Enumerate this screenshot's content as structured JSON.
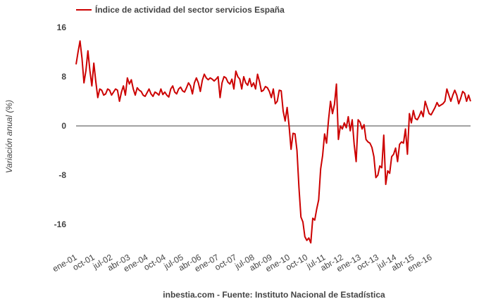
{
  "chart_data": {
    "type": "line",
    "title": "",
    "xlabel": "",
    "ylabel": "Variación anual (%)",
    "source": "inbestia.com - Fuente: Instituto Nacional de Estadística",
    "legend": "top-left",
    "grid": false,
    "ylim": [
      -20,
      16
    ],
    "yticks": [
      16,
      8,
      0,
      -8,
      -16
    ],
    "xticks": [
      "ene-01",
      "oct-01",
      "jul-02",
      "abr-03",
      "ene-04",
      "oct-04",
      "jul-05",
      "abr-06",
      "ene-07",
      "oct-07",
      "jul-08",
      "abr-09",
      "ene-10",
      "oct-10",
      "jul-11",
      "abr-12",
      "ene-13",
      "oct-13",
      "jul-14",
      "abr-15",
      "ene-16"
    ],
    "colors": {
      "series": "#cc0000",
      "zero_line": "#444444"
    },
    "series": [
      {
        "name": "Índice de actividad del sector servicios España",
        "x_start": "ene-01",
        "frequency": "monthly",
        "values": [
          10,
          12,
          13.8,
          11,
          7,
          9,
          12.2,
          9,
          6.5,
          10.2,
          7.2,
          4.6,
          6,
          5.8,
          5,
          5.2,
          6,
          5.8,
          5,
          5.5,
          6,
          5.8,
          4,
          5.5,
          6.5,
          5,
          7.8,
          6.8,
          7.5,
          6,
          5,
          6.2,
          5.8,
          5.6,
          5,
          4.8,
          5.4,
          6,
          5.2,
          4.8,
          5.5,
          5.3,
          5,
          6,
          5.1,
          5.5,
          5,
          4.7,
          6,
          6.5,
          5.5,
          5.2,
          6,
          6.3,
          5.7,
          5.5,
          6.2,
          7,
          6.5,
          5.2,
          7,
          7.8,
          7,
          5.6,
          7.4,
          8.4,
          7.8,
          7.5,
          7.8,
          7.6,
          7.3,
          7.6,
          8,
          4.6,
          7,
          8,
          7.8,
          7.1,
          6.8,
          7.6,
          6,
          8.9,
          8,
          7.6,
          6,
          8,
          7,
          6.6,
          7.7,
          6.4,
          7,
          6,
          8.4,
          7.2,
          5.6,
          5.8,
          6.4,
          6.2,
          5.6,
          4.6,
          6,
          3.6,
          4,
          5.8,
          5.7,
          2.4,
          0.8,
          3,
          0,
          -3.8,
          -1.2,
          -1.3,
          -4,
          -10,
          -14.8,
          -15.6,
          -18,
          -18.6,
          -18.2,
          -19,
          -15,
          -15.3,
          -13.5,
          -12,
          -7,
          -4.8,
          -1.3,
          -2.8,
          1,
          4,
          2,
          3.5,
          6.8,
          -2.2,
          0,
          -0.5,
          0.5,
          -0.3,
          1.5,
          -0.8,
          1,
          -3,
          -5.8,
          1,
          0.6,
          -0.5,
          0.2,
          -2.2,
          -2.6,
          -2.8,
          -3.5,
          -5,
          -8.4,
          -8,
          -6.5,
          -6.8,
          -1.5,
          -9.5,
          -7.3,
          -7.7,
          -5,
          -4.6,
          -3.6,
          -5.8,
          -3,
          -2.6,
          -2.8,
          -0.5,
          -4.6,
          2,
          0.5,
          2.5,
          1.2,
          1,
          1.6,
          2.4,
          1.5,
          4,
          3,
          2,
          1.8,
          2.4,
          3,
          3.8,
          3.2,
          3.4,
          3.6,
          4,
          6,
          5,
          4,
          5,
          5.8,
          5,
          3.6,
          4.5,
          5.6,
          5.3,
          4,
          5,
          4
        ]
      }
    ]
  }
}
